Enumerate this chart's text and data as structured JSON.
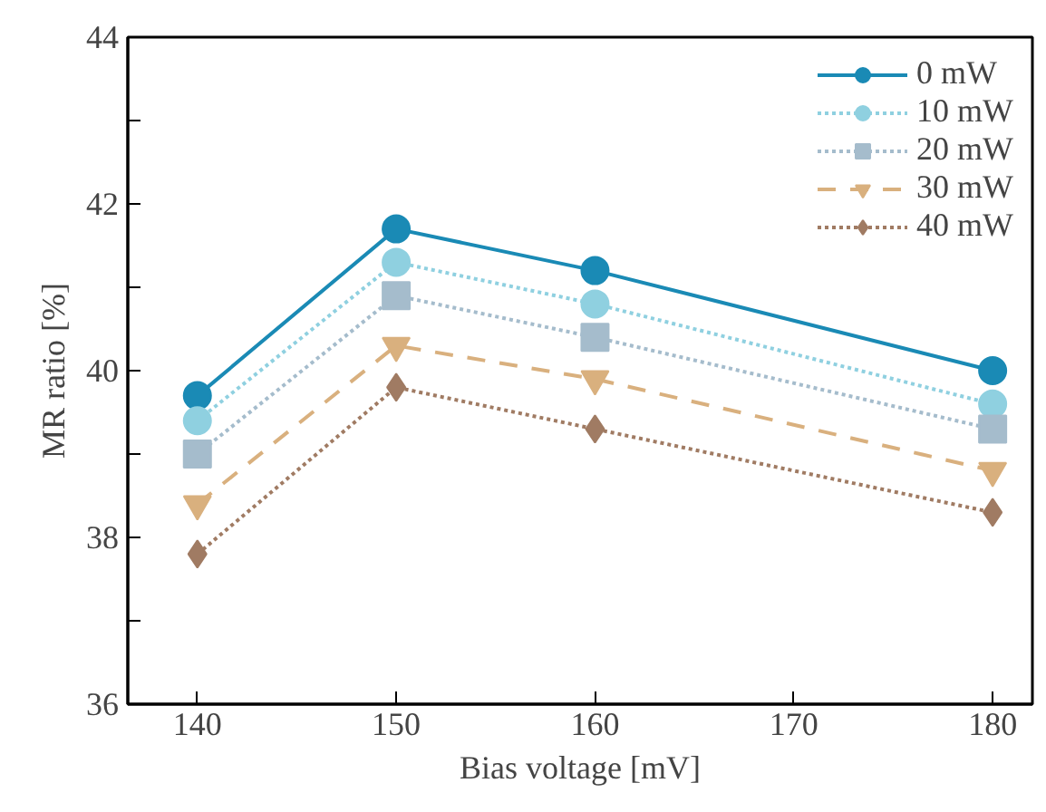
{
  "chart_data": {
    "type": "line",
    "xlabel": "Bias voltage [mV]",
    "ylabel": "MR ratio [%]",
    "x": [
      140,
      150,
      160,
      180
    ],
    "series": [
      {
        "name": "0 mW",
        "color": "#1a8ab5",
        "marker": "circle",
        "line_style": "solid",
        "values": [
          39.7,
          41.7,
          41.2,
          40.0
        ]
      },
      {
        "name": "10 mW",
        "color": "#8fd0e0",
        "marker": "circle",
        "line_style": "dotted",
        "values": [
          39.4,
          41.3,
          40.8,
          39.6
        ]
      },
      {
        "name": "20 mW",
        "color": "#a5bccc",
        "marker": "square",
        "line_style": "dotted",
        "values": [
          39.0,
          40.9,
          40.4,
          39.3
        ]
      },
      {
        "name": "30 mW",
        "color": "#d9b07e",
        "marker": "triangle",
        "line_style": "dashed",
        "values": [
          38.4,
          40.3,
          39.9,
          38.8
        ]
      },
      {
        "name": "40 mW",
        "color": "#a07b63",
        "marker": "diamond",
        "line_style": "dotted",
        "values": [
          37.8,
          39.8,
          39.3,
          38.3
        ]
      }
    ],
    "xlim": [
      136.5,
      182
    ],
    "ylim": [
      36,
      44
    ],
    "xticks": [
      140,
      150,
      160,
      170,
      180
    ],
    "yticks": [
      36,
      {
        "value": 37,
        "label": null
      },
      38,
      {
        "value": 39,
        "label": null
      },
      40,
      {
        "value": 41,
        "label": null
      },
      42,
      {
        "value": 43,
        "label": null
      },
      44
    ],
    "grid": false,
    "legend": "top right"
  }
}
